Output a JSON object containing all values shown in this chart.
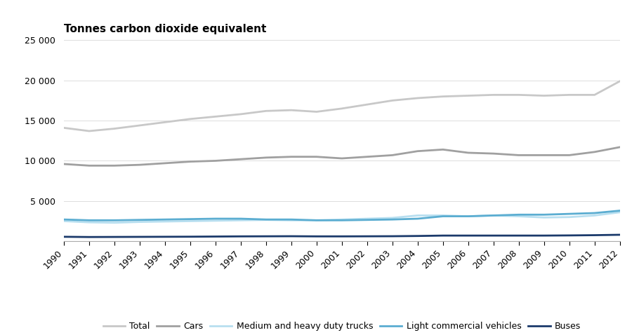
{
  "years": [
    1990,
    1991,
    1992,
    1993,
    1994,
    1995,
    1996,
    1997,
    1998,
    1999,
    2000,
    2001,
    2002,
    2003,
    2004,
    2005,
    2006,
    2007,
    2008,
    2009,
    2010,
    2011,
    2012
  ],
  "total": [
    14100,
    13700,
    14000,
    14400,
    14800,
    15200,
    15500,
    15800,
    16200,
    16300,
    16100,
    16500,
    17000,
    17500,
    17800,
    18000,
    18100,
    18200,
    18200,
    18100,
    18200,
    18200,
    19900
  ],
  "cars": [
    9600,
    9400,
    9400,
    9500,
    9700,
    9900,
    10000,
    10200,
    10400,
    10500,
    10500,
    10300,
    10500,
    10700,
    11200,
    11400,
    11000,
    10900,
    10700,
    10700,
    10700,
    11100,
    11700
  ],
  "medium_heavy_trucks": [
    2500,
    2350,
    2300,
    2400,
    2450,
    2500,
    2550,
    2600,
    2650,
    2600,
    2600,
    2700,
    2800,
    2900,
    3200,
    3200,
    3100,
    3200,
    3100,
    2950,
    3000,
    3200,
    3600
  ],
  "light_commercial": [
    2700,
    2600,
    2600,
    2650,
    2700,
    2750,
    2800,
    2800,
    2700,
    2700,
    2600,
    2600,
    2650,
    2700,
    2800,
    3100,
    3100,
    3200,
    3300,
    3300,
    3400,
    3500,
    3800
  ],
  "buses": [
    550,
    520,
    530,
    540,
    550,
    560,
    580,
    600,
    610,
    620,
    600,
    600,
    610,
    620,
    650,
    700,
    700,
    700,
    700,
    700,
    720,
    750,
    800
  ],
  "colors": {
    "total": "#c8c8c8",
    "cars": "#a0a0a0",
    "medium_heavy_trucks": "#b8dff0",
    "light_commercial": "#5badd1",
    "buses": "#1b3a6b"
  },
  "title": "Tonnes carbon dioxide equivalent",
  "ylim": [
    0,
    25000
  ],
  "yticks": [
    5000,
    10000,
    15000,
    20000,
    25000
  ],
  "figsize": [
    9.1,
    4.78
  ],
  "dpi": 100,
  "legend_labels": [
    "Total",
    "Cars",
    "Medium and heavy duty trucks",
    "Light commercial vehicles",
    "Buses"
  ]
}
